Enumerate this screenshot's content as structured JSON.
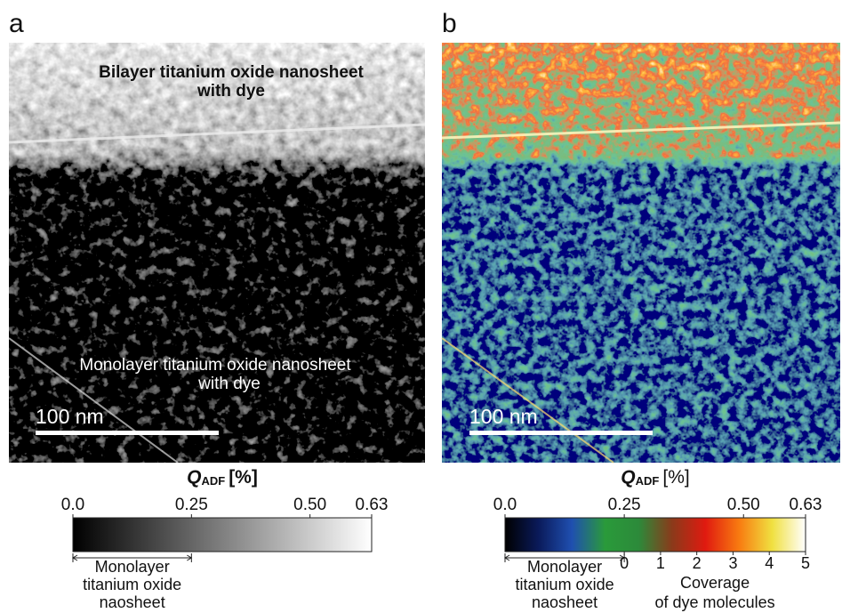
{
  "panels": [
    {
      "label": "a",
      "annotations": {
        "upper": [
          "Bilayer titanium oxide nanosheet",
          "with dye"
        ],
        "lower": [
          "Monolayer titanium oxide nanosheet",
          "with dye"
        ]
      },
      "scale_bar": "100 nm"
    },
    {
      "label": "b",
      "scale_bar": "100 nm"
    }
  ],
  "chart_data": [
    {
      "type": "colorbar",
      "title": {
        "symbol": "Q",
        "subscript": "ADF",
        "unit": "[%]"
      },
      "xlim": [
        0,
        0.63
      ],
      "xticks": [
        {
          "value": 0,
          "label": "0.0"
        },
        0.25,
        {
          "value": 0.5,
          "label": "0.50"
        },
        0.63
      ],
      "colors": [
        "#000000",
        "#ffffff"
      ],
      "bracket": {
        "range": [
          0,
          0.25
        ],
        "label": [
          "Monolayer",
          "titanium oxide",
          "naosheet"
        ]
      }
    },
    {
      "type": "colorbar",
      "title": {
        "symbol": "Q",
        "subscript": "ADF",
        "unit": "[%]"
      },
      "xlim": [
        0,
        0.63
      ],
      "xticks": [
        {
          "value": 0,
          "label": "0.0"
        },
        0.25,
        {
          "value": 0.5,
          "label": "0.50"
        },
        0.63
      ],
      "colors": [
        "#000000",
        "#0a1a5a",
        "#1f4fb0",
        "#2a9a3a",
        "#2c8a3a",
        "#8a3a1a",
        "#e01a10",
        "#f87a10",
        "#f0e040",
        "#ffffff"
      ],
      "bracket": {
        "range": [
          0,
          0.25
        ],
        "label": [
          "Monolayer",
          "titanium oxide",
          "naosheet"
        ]
      },
      "y2lim": [
        0,
        5
      ],
      "y2ticks": [
        0,
        1,
        2,
        3,
        4,
        5
      ],
      "y2label": [
        "Coverage",
        "of dye molecules"
      ]
    }
  ]
}
